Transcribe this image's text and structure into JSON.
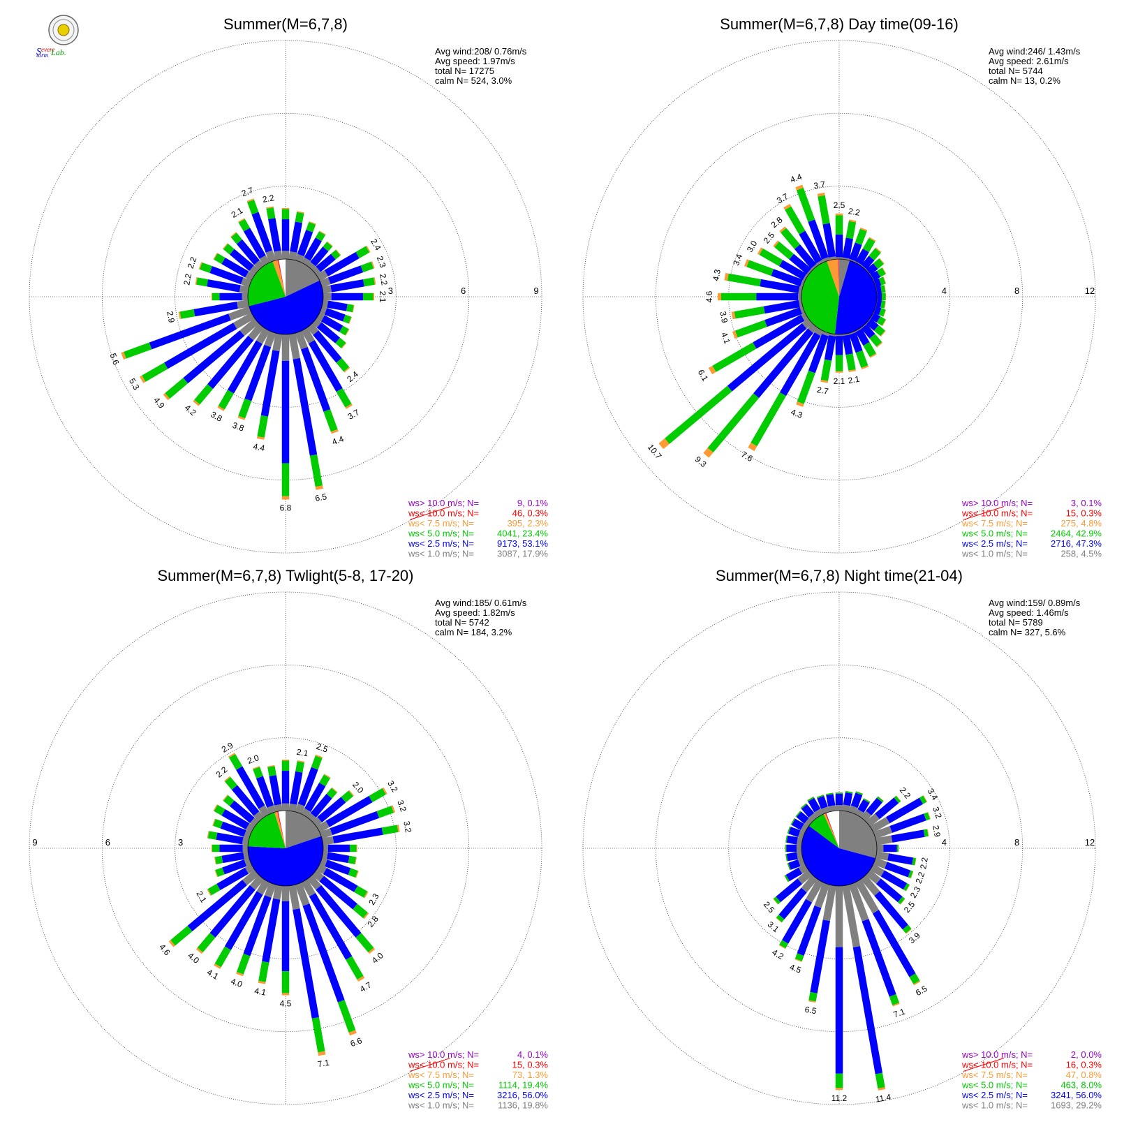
{
  "logo": {
    "text": "Severe Storm Lab.",
    "colors": {
      "s": "#0000cc",
      "evere": "#d40000",
      "torm": "#0000cc",
      "lab": "#00a000"
    }
  },
  "colors": {
    "gt10": "#9900cc",
    "lt10": "#ff0000",
    "lt7_5": "#ff9933",
    "lt5": "#00cc00",
    "lt2_5": "#0000ff",
    "lt1": "#808080"
  },
  "legend_labels": [
    "ws> 10.0 m/s; N=",
    "ws< 10.0 m/s; N=",
    "ws<  7.5 m/s; N=",
    "ws<  5.0 m/s; N=",
    "ws<  2.5 m/s; N=",
    "ws<  1.0 m/s; N="
  ],
  "chart_data": [
    {
      "type": "windrose",
      "title": "Summer(M=6,7,8)",
      "rings": [
        3,
        6,
        9
      ],
      "ring_labels": [
        "3",
        "6",
        "9"
      ],
      "ring_label_side": "right",
      "stats": {
        "avg_wind": "Avg wind:208/ 0.76m/s",
        "avg_speed": "Avg speed: 1.97m/s",
        "total": "total N=       17275",
        "calm": "calm N=     524,   3.0%"
      },
      "legend": [
        "9,  0.1%",
        "46,  0.3%",
        "395,  2.3%",
        "4041, 23.4%",
        "9173, 53.1%",
        "3087, 17.9%"
      ],
      "pie": [
        0.179,
        0.531,
        0.234,
        0.023,
        0.003,
        0.001
      ],
      "directions_deg": [
        0,
        10,
        20,
        30,
        40,
        50,
        60,
        70,
        80,
        90,
        100,
        110,
        120,
        130,
        140,
        150,
        160,
        170,
        180,
        190,
        200,
        210,
        220,
        230,
        240,
        250,
        260,
        270,
        280,
        290,
        300,
        310,
        320,
        330,
        340,
        350
      ],
      "totals": [
        2.1,
        2.0,
        1.7,
        1.5,
        1.3,
        1.3,
        2.4,
        2.3,
        2.2,
        2.1,
        1.3,
        1.3,
        1.4,
        1.6,
        2.4,
        3.7,
        4.4,
        6.5,
        6.8,
        4.4,
        3.8,
        3.8,
        4.2,
        4.9,
        5.3,
        5.6,
        2.9,
        1.5,
        2.2,
        2.2,
        1.8,
        1.7,
        1.8,
        2.1,
        2.7,
        2.2
      ],
      "fractions": [
        0.16,
        0.62,
        0.2,
        0.02,
        0.0,
        0.0
      ],
      "labels": [
        {
          "dir": 160,
          "text": "4.4"
        },
        {
          "dir": 170,
          "text": "6.5"
        },
        {
          "dir": 180,
          "text": "6.8"
        },
        {
          "dir": 190,
          "text": "4.4"
        },
        {
          "dir": 200,
          "text": "3.8"
        },
        {
          "dir": 210,
          "text": "3.8"
        },
        {
          "dir": 220,
          "text": "4.2"
        },
        {
          "dir": 230,
          "text": "4.9"
        },
        {
          "dir": 240,
          "text": "5.3"
        },
        {
          "dir": 250,
          "text": "5.6"
        },
        {
          "dir": 260,
          "text": "2.9"
        },
        {
          "dir": 140,
          "text": "2.4"
        },
        {
          "dir": 150,
          "text": "3.7"
        },
        {
          "dir": 60,
          "text": "2.4"
        },
        {
          "dir": 70,
          "text": "2.3"
        },
        {
          "dir": 80,
          "text": "2.2"
        },
        {
          "dir": 90,
          "text": "2.1"
        },
        {
          "dir": 280,
          "text": "2.2"
        },
        {
          "dir": 290,
          "text": "2.2"
        },
        {
          "dir": 330,
          "text": "2.1"
        },
        {
          "dir": 340,
          "text": "2.7"
        },
        {
          "dir": 350,
          "text": "2.2"
        }
      ]
    },
    {
      "type": "windrose",
      "title": "Summer(M=6,7,8) Day time(09-16)",
      "rings": [
        4,
        8,
        12
      ],
      "ring_labels": [
        "4",
        "8",
        "12"
      ],
      "ring_label_side": "right",
      "stats": {
        "avg_wind": "Avg wind:246/ 1.43m/s",
        "avg_speed": "Avg speed: 2.61m/s",
        "total": "total N=         5744",
        "calm": "calm N=       13,   0.2%"
      },
      "legend": [
        "3,  0.1%",
        "15,  0.3%",
        "275,  4.8%",
        "2464, 42.9%",
        "2716, 47.3%",
        "258,  4.5%"
      ],
      "pie": [
        0.045,
        0.473,
        0.429,
        0.048,
        0.003,
        0.001
      ],
      "directions_deg": [
        0,
        10,
        20,
        30,
        40,
        50,
        60,
        70,
        80,
        90,
        100,
        110,
        120,
        130,
        140,
        150,
        160,
        170,
        180,
        190,
        200,
        210,
        220,
        230,
        240,
        250,
        260,
        270,
        280,
        290,
        300,
        310,
        320,
        330,
        340,
        350
      ],
      "totals": [
        2.5,
        2.2,
        1.9,
        1.6,
        1.3,
        1.0,
        0.8,
        0.6,
        0.5,
        0.5,
        0.5,
        0.6,
        0.8,
        1.1,
        1.4,
        1.7,
        2.1,
        2.1,
        2.1,
        2.7,
        4.3,
        7.6,
        9.3,
        10.7,
        6.1,
        4.1,
        3.9,
        4.6,
        4.3,
        3.4,
        3.0,
        2.5,
        2.8,
        3.7,
        4.4,
        3.7
      ],
      "fractions": [
        0.04,
        0.5,
        0.42,
        0.04,
        0.0,
        0.0
      ],
      "labels": [
        {
          "dir": 0,
          "text": "2.5"
        },
        {
          "dir": 10,
          "text": "2.2"
        },
        {
          "dir": 170,
          "text": "2.1"
        },
        {
          "dir": 180,
          "text": "2.1"
        },
        {
          "dir": 190,
          "text": "2.7"
        },
        {
          "dir": 200,
          "text": "4.3"
        },
        {
          "dir": 210,
          "text": "7.6"
        },
        {
          "dir": 220,
          "text": "9.3"
        },
        {
          "dir": 230,
          "text": "10.7"
        },
        {
          "dir": 240,
          "text": "6.1"
        },
        {
          "dir": 250,
          "text": "4.1"
        },
        {
          "dir": 260,
          "text": "3.9"
        },
        {
          "dir": 270,
          "text": "4.6"
        },
        {
          "dir": 280,
          "text": "4.3"
        },
        {
          "dir": 290,
          "text": "3.4"
        },
        {
          "dir": 300,
          "text": "3.0"
        },
        {
          "dir": 310,
          "text": "2.5"
        },
        {
          "dir": 320,
          "text": "2.8"
        },
        {
          "dir": 330,
          "text": "3.7"
        },
        {
          "dir": 340,
          "text": "4.4"
        },
        {
          "dir": 350,
          "text": "3.7"
        }
      ]
    },
    {
      "type": "windrose",
      "title": "Summer(M=6,7,8) Twlight(5-8, 17-20)",
      "rings": [
        3,
        6,
        9
      ],
      "ring_labels": [
        "3",
        "6",
        "9"
      ],
      "ring_label_side": "left",
      "stats": {
        "avg_wind": "Avg wind:185/ 0.61m/s",
        "avg_speed": "Avg speed: 1.82m/s",
        "total": "total N=         5742",
        "calm": "calm N=     184,   3.2%"
      },
      "legend": [
        "4,  0.1%",
        "15,  0.3%",
        "73,  1.3%",
        "1114, 19.4%",
        "3216, 56.0%",
        "1136, 19.8%"
      ],
      "pie": [
        0.198,
        0.56,
        0.194,
        0.013,
        0.003,
        0.001
      ],
      "directions_deg": [
        0,
        10,
        20,
        30,
        40,
        50,
        60,
        70,
        80,
        90,
        100,
        110,
        120,
        130,
        140,
        150,
        160,
        170,
        180,
        190,
        200,
        210,
        220,
        230,
        240,
        250,
        260,
        270,
        280,
        290,
        300,
        310,
        320,
        330,
        340,
        350
      ],
      "totals": [
        2.1,
        2.1,
        2.5,
        1.9,
        1.6,
        2.0,
        3.2,
        3.2,
        3.2,
        1.4,
        1.4,
        1.6,
        2.3,
        2.8,
        4.0,
        4.7,
        6.6,
        7.1,
        4.5,
        4.1,
        4.0,
        4.1,
        4.0,
        4.6,
        2.1,
        1.5,
        1.4,
        1.5,
        1.7,
        1.6,
        1.8,
        1.7,
        2.2,
        2.9,
        2.0,
        1.9
      ],
      "fractions": [
        0.14,
        0.64,
        0.2,
        0.02,
        0.0,
        0.0
      ],
      "labels": [
        {
          "dir": 10,
          "text": "2.1"
        },
        {
          "dir": 20,
          "text": "2.5"
        },
        {
          "dir": 50,
          "text": "2.0"
        },
        {
          "dir": 60,
          "text": "3.2"
        },
        {
          "dir": 70,
          "text": "3.2"
        },
        {
          "dir": 80,
          "text": "3.2"
        },
        {
          "dir": 120,
          "text": "2.3"
        },
        {
          "dir": 130,
          "text": "2.8"
        },
        {
          "dir": 140,
          "text": "4.0"
        },
        {
          "dir": 150,
          "text": "4.7"
        },
        {
          "dir": 160,
          "text": "6.6"
        },
        {
          "dir": 170,
          "text": "7.1"
        },
        {
          "dir": 180,
          "text": "4.5"
        },
        {
          "dir": 190,
          "text": "4.1"
        },
        {
          "dir": 200,
          "text": "4.0"
        },
        {
          "dir": 210,
          "text": "4.1"
        },
        {
          "dir": 220,
          "text": "4.0"
        },
        {
          "dir": 230,
          "text": "4.6"
        },
        {
          "dir": 240,
          "text": "2.1"
        },
        {
          "dir": 320,
          "text": "2.2"
        },
        {
          "dir": 330,
          "text": "2.9"
        },
        {
          "dir": 340,
          "text": "2.0"
        }
      ]
    },
    {
      "type": "windrose",
      "title": "Summer(M=6,7,8) Night time(21-04)",
      "rings": [
        4,
        8,
        12
      ],
      "ring_labels": [
        "4",
        "8",
        "12"
      ],
      "ring_label_side": "right",
      "stats": {
        "avg_wind": "Avg wind:159/ 0.89m/s",
        "avg_speed": "Avg speed: 1.46m/s",
        "total": "total N=         5789",
        "calm": "calm N=     327,   5.6%"
      },
      "legend": [
        "2,  0.0%",
        "16,  0.3%",
        "47,  0.8%",
        "463,  8.0%",
        "3241, 56.0%",
        "1693, 29.2%"
      ],
      "pie": [
        0.292,
        0.56,
        0.08,
        0.008,
        0.003,
        0.001
      ],
      "directions_deg": [
        0,
        10,
        20,
        30,
        40,
        50,
        60,
        70,
        80,
        90,
        100,
        110,
        120,
        130,
        140,
        150,
        160,
        170,
        180,
        190,
        200,
        210,
        220,
        230,
        240,
        250,
        260,
        270,
        280,
        290,
        300,
        310,
        320,
        330,
        340,
        350
      ],
      "totals": [
        1.0,
        1.1,
        1.2,
        1.0,
        1.5,
        2.2,
        3.4,
        3.2,
        2.9,
        1.2,
        2.2,
        2.2,
        2.3,
        2.5,
        3.9,
        6.5,
        7.1,
        11.4,
        11.2,
        6.5,
        4.5,
        4.2,
        3.1,
        2.5,
        1.3,
        0.9,
        0.9,
        0.9,
        0.9,
        0.9,
        0.9,
        0.9,
        1.0,
        1.1,
        1.0,
        1.0
      ],
      "fractions": [
        0.3,
        0.62,
        0.07,
        0.01,
        0.0,
        0.0
      ],
      "labels": [
        {
          "dir": 50,
          "text": "2.2"
        },
        {
          "dir": 60,
          "text": "3.4"
        },
        {
          "dir": 70,
          "text": "3.2"
        },
        {
          "dir": 80,
          "text": "2.9"
        },
        {
          "dir": 100,
          "text": "2.2"
        },
        {
          "dir": 110,
          "text": "2.2"
        },
        {
          "dir": 120,
          "text": "2.3"
        },
        {
          "dir": 130,
          "text": "2.5"
        },
        {
          "dir": 140,
          "text": "3.9"
        },
        {
          "dir": 150,
          "text": "6.5"
        },
        {
          "dir": 160,
          "text": "7.1"
        },
        {
          "dir": 170,
          "text": "11.4"
        },
        {
          "dir": 180,
          "text": "11.2"
        },
        {
          "dir": 190,
          "text": "6.5"
        },
        {
          "dir": 200,
          "text": "4.5"
        },
        {
          "dir": 210,
          "text": "4.2"
        },
        {
          "dir": 220,
          "text": "3.1"
        },
        {
          "dir": 230,
          "text": "2.5"
        }
      ]
    }
  ]
}
